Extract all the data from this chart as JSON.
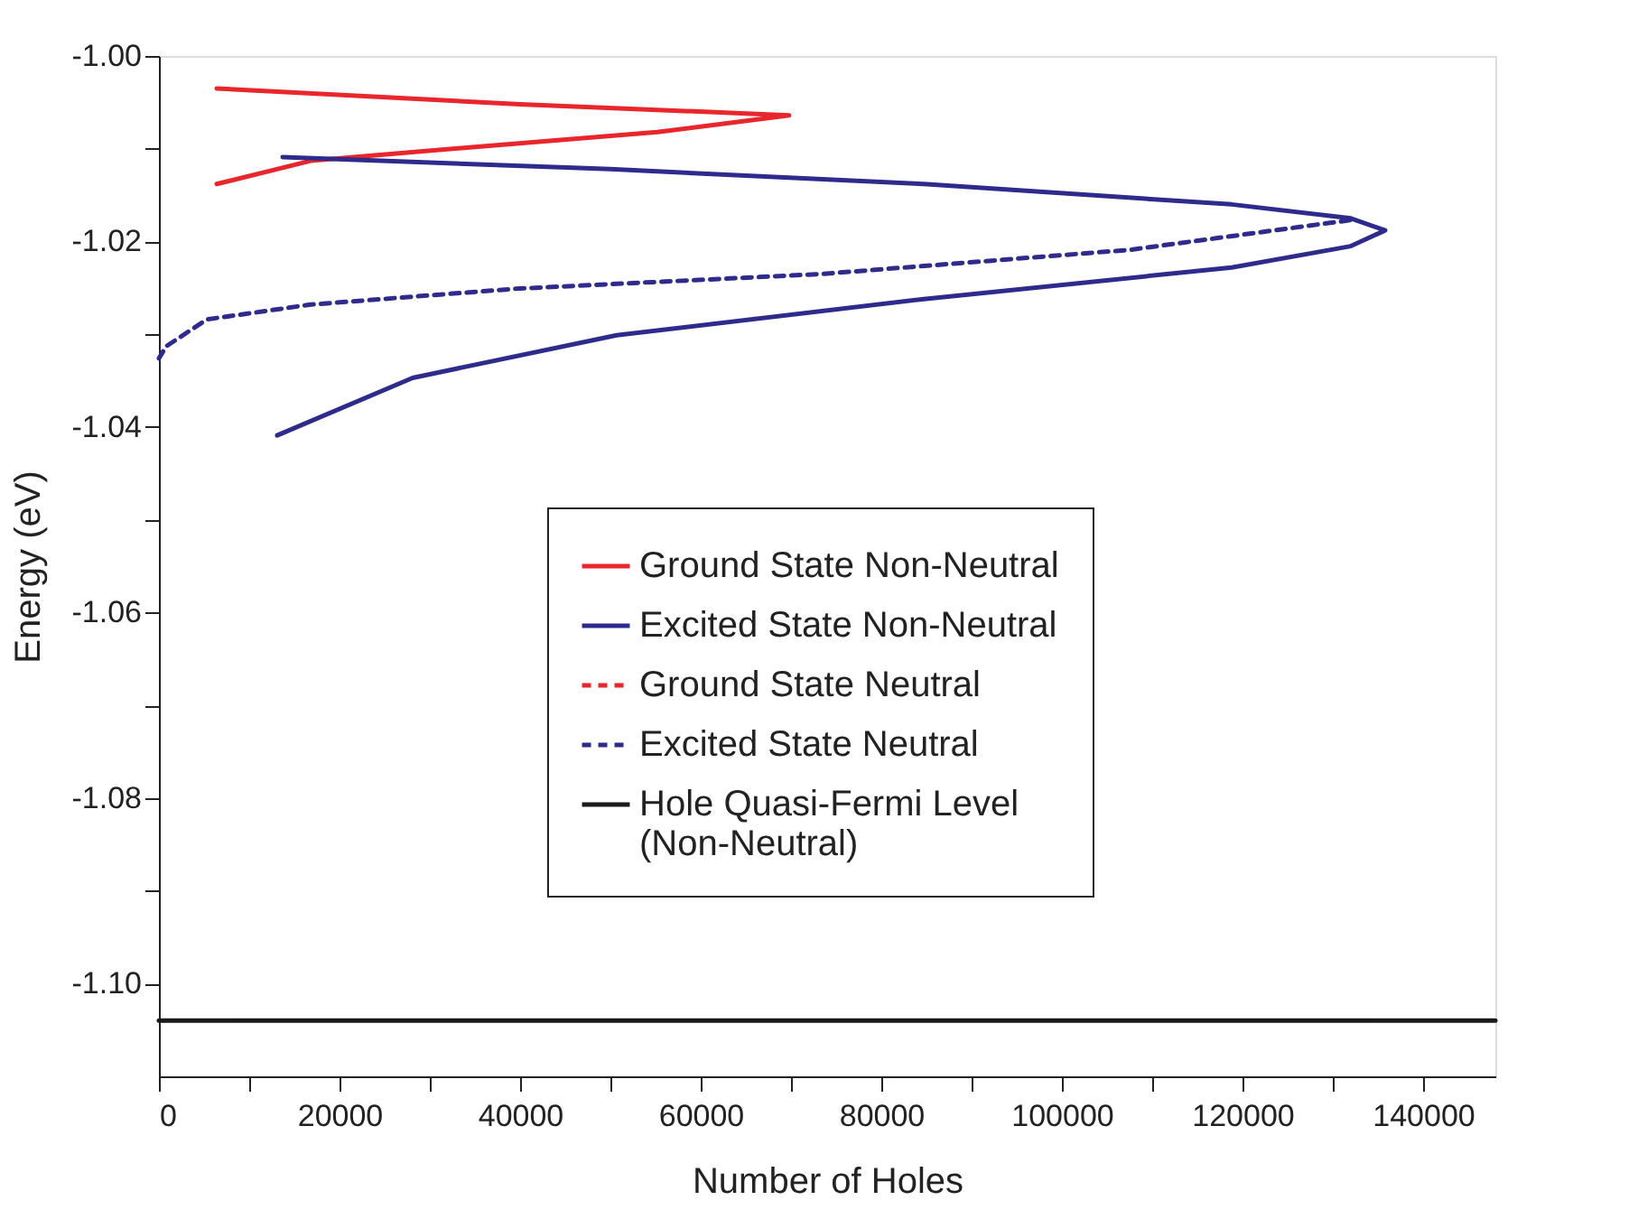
{
  "chart_data": {
    "type": "line",
    "xlabel": "Number of Holes",
    "ylabel": "Energy (eV)",
    "xlim": [
      0,
      148000
    ],
    "ylim": [
      -1.11,
      -1.0
    ],
    "xticks": [
      0,
      {
        "value": 10000,
        "label": null
      },
      20000,
      {
        "value": 30000,
        "label": null
      },
      40000,
      {
        "value": 50000,
        "label": null
      },
      60000,
      {
        "value": 70000,
        "label": null
      },
      80000,
      {
        "value": 90000,
        "label": null
      },
      100000,
      {
        "value": 110000,
        "label": null
      },
      120000,
      {
        "value": 130000,
        "label": null
      },
      140000
    ],
    "yticks": [
      {
        "value": -1.0,
        "label": "-1.00"
      },
      {
        "value": -1.01,
        "label": null
      },
      -1.02,
      {
        "value": -1.03,
        "label": null
      },
      -1.04,
      {
        "value": -1.05,
        "label": null
      },
      -1.06,
      {
        "value": -1.07,
        "label": null
      },
      -1.08,
      {
        "value": -1.09,
        "label": null
      },
      {
        "value": -1.1,
        "label": "-1.10"
      }
    ],
    "legend": "bottom",
    "grid": false,
    "marker": "none",
    "series": [
      {
        "name": "Ground State Non-Neutral",
        "color": "#e8262b",
        "line_style": "solid",
        "x": [
          6400,
          40000,
          69800,
          55200,
          35000,
          16800,
          6400
        ],
        "values": [
          -1.0035,
          -1.0052,
          -1.0064,
          -1.0082,
          -1.0098,
          -1.0113,
          -1.0138
        ]
      },
      {
        "name": "Excited State Non-Neutral",
        "color": "#2e2b8c",
        "line_style": "solid",
        "x": [
          13700,
          50000,
          84700,
          118800,
          132000,
          135800,
          132000,
          118800,
          84700,
          50700,
          28100,
          13100
        ],
        "values": [
          -1.0109,
          -1.0122,
          -1.0138,
          -1.016,
          -1.0175,
          -1.0188,
          -1.0205,
          -1.0228,
          -1.0262,
          -1.0301,
          -1.0347,
          -1.0409
        ]
      },
      {
        "name": "Ground State Neutral",
        "color": "#e8262b",
        "line_style": "dashed"
      },
      {
        "name": "Excited State Neutral",
        "color": "#2e2b8c",
        "line_style": "dashed",
        "x": [
          131900,
          107500,
          73400,
          39400,
          16800,
          5300,
          800,
          0
        ],
        "values": [
          -1.0177,
          -1.0209,
          -1.0235,
          -1.0251,
          -1.0268,
          -1.0284,
          -1.0313,
          -1.0326
        ]
      },
      {
        "name": "Hole Quasi-Fermi Level\n(Non-Neutral)",
        "color": "#1a1a1a",
        "line_style": "solid",
        "x": [
          0,
          148000
        ],
        "values": [
          -1.104,
          -1.104
        ]
      }
    ]
  }
}
